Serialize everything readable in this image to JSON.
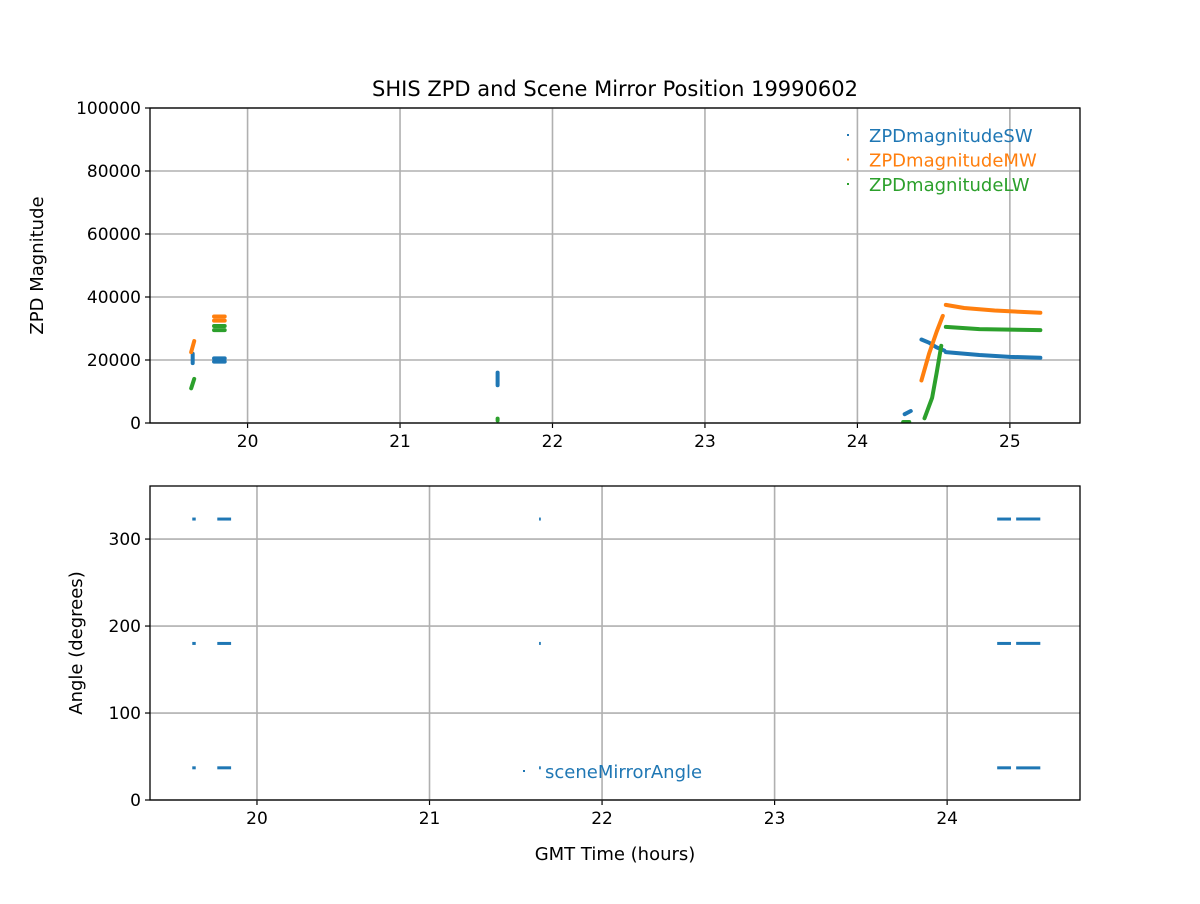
{
  "chart_data": [
    {
      "type": "scatter",
      "title": "SHIS ZPD and Scene Mirror Position 19990602",
      "xlabel": "",
      "ylabel": "ZPD Magnitude",
      "xlim": [
        19.36,
        25.46
      ],
      "ylim": [
        0,
        100000
      ],
      "xticks": [
        20,
        21,
        22,
        23,
        24,
        25
      ],
      "yticks": [
        0,
        20000,
        40000,
        60000,
        80000,
        100000
      ],
      "grid": true,
      "legend_position": "top-right",
      "series": [
        {
          "name": "ZPDmagnitudeSW",
          "color": "#1f77b4",
          "segments": [
            [
              [
                19.64,
                19000
              ],
              [
                19.64,
                22000
              ]
            ],
            [
              [
                19.78,
                19500
              ],
              [
                19.85,
                19500
              ]
            ],
            [
              [
                19.78,
                20500
              ],
              [
                19.85,
                20500
              ]
            ],
            [
              [
                21.64,
                12000
              ],
              [
                21.64,
                16000
              ]
            ],
            [
              [
                24.31,
                2800
              ],
              [
                24.35,
                3800
              ]
            ],
            [
              [
                24.42,
                26500
              ],
              [
                24.47,
                25500
              ],
              [
                24.52,
                24000
              ],
              [
                24.57,
                23000
              ]
            ],
            [
              [
                24.58,
                22500
              ],
              [
                24.8,
                21600
              ],
              [
                25.0,
                21000
              ],
              [
                25.2,
                20700
              ]
            ]
          ]
        },
        {
          "name": "ZPDmagnitudeMW",
          "color": "#ff7f0e",
          "segments": [
            [
              [
                19.63,
                22500
              ],
              [
                19.65,
                26000
              ]
            ],
            [
              [
                19.78,
                32500
              ],
              [
                19.85,
                32500
              ]
            ],
            [
              [
                19.78,
                33800
              ],
              [
                19.85,
                33800
              ]
            ],
            [
              [
                24.42,
                13500
              ],
              [
                24.47,
                22000
              ],
              [
                24.52,
                29000
              ],
              [
                24.56,
                34000
              ]
            ],
            [
              [
                24.58,
                37500
              ],
              [
                24.7,
                36500
              ],
              [
                24.9,
                35700
              ],
              [
                25.2,
                35000
              ]
            ]
          ]
        },
        {
          "name": "ZPDmagnitudeLW",
          "color": "#2ca02c",
          "segments": [
            [
              [
                19.63,
                11000
              ],
              [
                19.65,
                14000
              ]
            ],
            [
              [
                19.78,
                29500
              ],
              [
                19.85,
                29500
              ]
            ],
            [
              [
                19.78,
                30800
              ],
              [
                19.85,
                30800
              ]
            ],
            [
              [
                21.64,
                800
              ],
              [
                21.64,
                1400
              ]
            ],
            [
              [
                24.3,
                300
              ],
              [
                24.34,
                300
              ]
            ],
            [
              [
                24.44,
                1500
              ],
              [
                24.49,
                8000
              ],
              [
                24.52,
                16000
              ],
              [
                24.55,
                24500
              ]
            ],
            [
              [
                24.58,
                30500
              ],
              [
                24.8,
                29800
              ],
              [
                25.2,
                29500
              ]
            ]
          ]
        }
      ]
    },
    {
      "type": "scatter",
      "title": "",
      "xlabel": "GMT Time (hours)",
      "ylabel": "Angle (degrees)",
      "xlim": [
        19.38,
        24.77
      ],
      "ylim": [
        0,
        361
      ],
      "xticks": [
        20,
        21,
        22,
        23,
        24
      ],
      "yticks": [
        0,
        100,
        200,
        300
      ],
      "grid": true,
      "legend_position": "lower-center",
      "series": [
        {
          "name": "sceneMirrorAngle",
          "color": "#1f77b4",
          "angles": [
            323,
            180,
            37
          ],
          "time_ranges": [
            [
              19.625,
              19.645
            ],
            [
              19.77,
              19.85
            ],
            [
              21.635,
              21.645
            ],
            [
              24.29,
              24.37
            ],
            [
              24.4,
              24.54
            ]
          ]
        }
      ]
    }
  ]
}
